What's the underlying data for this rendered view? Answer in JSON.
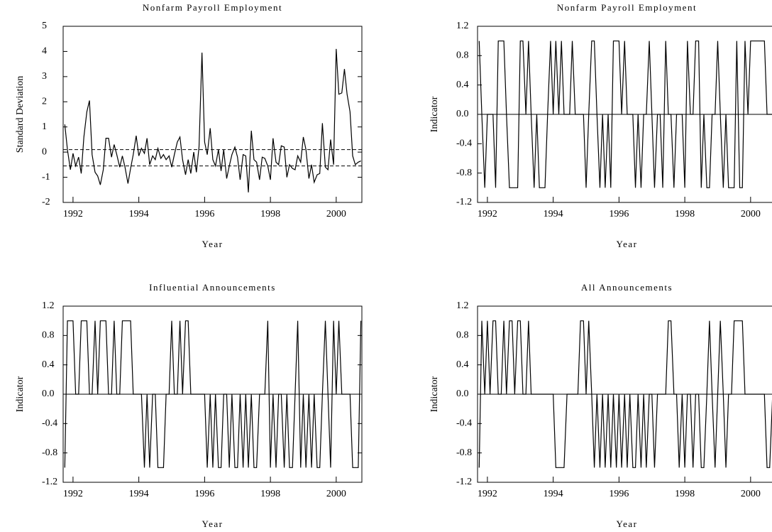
{
  "chart_data": [
    {
      "type": "line",
      "title": "Nonfarm Payroll Employment",
      "xlabel": "Year",
      "ylabel": "Standard Deviation",
      "color": "#000000",
      "x": [
        1991.75,
        1991.83,
        1991.92,
        1992.0,
        1992.08,
        1992.17,
        1992.25,
        1992.33,
        1992.42,
        1992.5,
        1992.58,
        1992.67,
        1992.75,
        1992.83,
        1992.92,
        1993.0,
        1993.08,
        1993.17,
        1993.25,
        1993.33,
        1993.42,
        1993.5,
        1993.58,
        1993.67,
        1993.75,
        1993.83,
        1993.92,
        1994.0,
        1994.08,
        1994.17,
        1994.25,
        1994.33,
        1994.42,
        1994.5,
        1994.58,
        1994.67,
        1994.75,
        1994.83,
        1994.92,
        1995.0,
        1995.08,
        1995.17,
        1995.25,
        1995.33,
        1995.42,
        1995.5,
        1995.58,
        1995.67,
        1995.75,
        1995.83,
        1995.92,
        1996.0,
        1996.08,
        1996.17,
        1996.25,
        1996.33,
        1996.42,
        1996.5,
        1996.58,
        1996.67,
        1996.75,
        1996.83,
        1996.92,
        1997.0,
        1997.08,
        1997.17,
        1997.25,
        1997.33,
        1997.42,
        1997.5,
        1997.58,
        1997.67,
        1997.75,
        1997.83,
        1997.92,
        1998.0,
        1998.08,
        1998.17,
        1998.25,
        1998.33,
        1998.42,
        1998.5,
        1998.58,
        1998.67,
        1998.75,
        1998.83,
        1998.92,
        1999.0,
        1999.08,
        1999.17,
        1999.25,
        1999.33,
        1999.42,
        1999.5,
        1999.58,
        1999.67,
        1999.75,
        1999.83,
        1999.92,
        2000.0,
        2000.08,
        2000.17,
        2000.25,
        2000.33,
        2000.42,
        2000.5,
        2000.58,
        2000.67,
        2000.75
      ],
      "values": [
        1.1,
        0.1,
        -0.7,
        -0.05,
        -0.55,
        -0.2,
        -0.85,
        0.6,
        1.6,
        2.05,
        -0.1,
        -0.8,
        -0.95,
        -1.3,
        -0.7,
        0.55,
        0.55,
        -0.2,
        0.3,
        -0.1,
        -0.6,
        -0.15,
        -0.6,
        -1.25,
        -0.65,
        -0.1,
        0.65,
        -0.15,
        0.15,
        -0.05,
        0.55,
        -0.5,
        -0.15,
        -0.3,
        0.15,
        -0.25,
        -0.1,
        -0.3,
        -0.15,
        -0.6,
        -0.1,
        0.4,
        0.6,
        -0.3,
        -0.9,
        -0.3,
        -0.85,
        0,
        -0.8,
        0.2,
        3.95,
        0.4,
        -0.1,
        0.95,
        -0.3,
        -0.55,
        0.1,
        -0.75,
        0.1,
        -1.05,
        -0.55,
        -0.1,
        0.2,
        -0.2,
        -1.1,
        -0.1,
        -0.15,
        -1.6,
        0.85,
        -0.3,
        -0.4,
        -1.1,
        -0.2,
        -0.25,
        -0.55,
        -1.1,
        0.55,
        -0.4,
        -0.5,
        0.25,
        0.2,
        -1.0,
        -0.5,
        -0.65,
        -0.7,
        -0.15,
        -0.4,
        0.6,
        0.1,
        -1.05,
        -0.5,
        -1.2,
        -0.9,
        -0.85,
        1.15,
        -0.6,
        -0.7,
        0.5,
        -0.5,
        4.1,
        2.3,
        2.35,
        3.3,
        2.3,
        1.6,
        -0.15,
        -0.5,
        -0.4,
        -0.35
      ],
      "xlim": [
        1991.7,
        2000.78
      ],
      "xticks": [
        1992,
        1994,
        1996,
        1998,
        2000
      ],
      "ylim": [
        -2,
        5
      ],
      "yticks": [
        -2,
        -1,
        0,
        1,
        2,
        3,
        4,
        5
      ],
      "hlines": [
        0.1,
        -0.55
      ],
      "hline_style": "dashed"
    },
    {
      "type": "line",
      "title": "Nonfarm Payroll Employment",
      "xlabel": "Year",
      "ylabel": "Indicator",
      "color": "#000000",
      "x": [
        1991.75,
        1991.83,
        1991.92,
        1992.0,
        1992.08,
        1992.17,
        1992.25,
        1992.33,
        1992.42,
        1992.5,
        1992.58,
        1992.67,
        1992.75,
        1992.83,
        1992.92,
        1993.0,
        1993.08,
        1993.17,
        1993.25,
        1993.33,
        1993.42,
        1993.5,
        1993.58,
        1993.67,
        1993.75,
        1993.83,
        1993.92,
        1994.0,
        1994.08,
        1994.17,
        1994.25,
        1994.33,
        1994.42,
        1994.5,
        1994.58,
        1994.67,
        1994.75,
        1994.83,
        1994.92,
        1995.0,
        1995.08,
        1995.17,
        1995.25,
        1995.33,
        1995.42,
        1995.5,
        1995.58,
        1995.67,
        1995.75,
        1995.83,
        1995.92,
        1996.0,
        1996.08,
        1996.17,
        1996.25,
        1996.33,
        1996.42,
        1996.5,
        1996.58,
        1996.67,
        1996.75,
        1996.83,
        1996.92,
        1997.0,
        1997.08,
        1997.17,
        1997.25,
        1997.33,
        1997.42,
        1997.5,
        1997.58,
        1997.67,
        1997.75,
        1997.83,
        1997.92,
        1998.0,
        1998.08,
        1998.17,
        1998.25,
        1998.33,
        1998.42,
        1998.5,
        1998.58,
        1998.67,
        1998.75,
        1998.83,
        1998.92,
        1999.0,
        1999.08,
        1999.17,
        1999.25,
        1999.33,
        1999.42,
        1999.5,
        1999.58,
        1999.67,
        1999.75,
        1999.83,
        1999.92,
        2000.0,
        2000.08,
        2000.17,
        2000.25,
        2000.33,
        2000.42,
        2000.5,
        2000.58,
        2000.67,
        2000.75
      ],
      "values": [
        1,
        0,
        -1,
        0,
        0,
        0,
        -1,
        1,
        1,
        1,
        0,
        -1,
        -1,
        -1,
        -1,
        1,
        1,
        0,
        1,
        0,
        -1,
        0,
        -1,
        -1,
        -1,
        0,
        1,
        0,
        1,
        0,
        1,
        0,
        0,
        0,
        1,
        0,
        0,
        0,
        0,
        -1,
        0,
        1,
        1,
        0,
        -1,
        0,
        -1,
        0,
        -1,
        1,
        1,
        1,
        0,
        1,
        0,
        0,
        0,
        -1,
        0,
        -1,
        0,
        0,
        1,
        0,
        -1,
        0,
        0,
        -1,
        1,
        0,
        0,
        -1,
        0,
        0,
        0,
        -1,
        1,
        0,
        0,
        1,
        1,
        -1,
        0,
        -1,
        -1,
        0,
        0,
        1,
        0,
        -1,
        0,
        -1,
        -1,
        -1,
        1,
        -1,
        -1,
        1,
        0,
        1,
        1,
        1,
        1,
        1,
        1,
        0,
        0,
        0,
        0
      ],
      "xlim": [
        1991.7,
        2000.78
      ],
      "xticks": [
        1992,
        1994,
        1996,
        1998,
        2000
      ],
      "ylim": [
        -1.2,
        1.2
      ],
      "yticks": [
        -1.2,
        -0.8,
        -0.4,
        {
          "value": 0,
          "label": "0.0"
        },
        0.4,
        0.8,
        1.2
      ],
      "hlines": [
        0
      ],
      "hline_style": "solid"
    },
    {
      "type": "line",
      "title": "Influential Announcements",
      "xlabel": "Year",
      "ylabel": "Indicator",
      "color": "#000000",
      "x": [
        1991.75,
        1991.83,
        1991.92,
        1992.0,
        1992.08,
        1992.17,
        1992.25,
        1992.33,
        1992.42,
        1992.5,
        1992.58,
        1992.67,
        1992.75,
        1992.83,
        1992.92,
        1993.0,
        1993.08,
        1993.17,
        1993.25,
        1993.33,
        1993.42,
        1993.5,
        1993.58,
        1993.67,
        1993.75,
        1993.83,
        1993.92,
        1994.0,
        1994.08,
        1994.17,
        1994.25,
        1994.33,
        1994.42,
        1994.5,
        1994.58,
        1994.67,
        1994.75,
        1994.83,
        1994.92,
        1995.0,
        1995.08,
        1995.17,
        1995.25,
        1995.33,
        1995.42,
        1995.5,
        1995.58,
        1995.67,
        1995.75,
        1995.83,
        1995.92,
        1996.0,
        1996.08,
        1996.17,
        1996.25,
        1996.33,
        1996.42,
        1996.5,
        1996.58,
        1996.67,
        1996.75,
        1996.83,
        1996.92,
        1997.0,
        1997.08,
        1997.17,
        1997.25,
        1997.33,
        1997.42,
        1997.5,
        1997.58,
        1997.67,
        1997.75,
        1997.83,
        1997.92,
        1998.0,
        1998.08,
        1998.17,
        1998.25,
        1998.33,
        1998.42,
        1998.5,
        1998.58,
        1998.67,
        1998.75,
        1998.83,
        1998.92,
        1999.0,
        1999.08,
        1999.17,
        1999.25,
        1999.33,
        1999.42,
        1999.5,
        1999.58,
        1999.67,
        1999.75,
        1999.83,
        1999.92,
        2000.0,
        2000.08,
        2000.17,
        2000.25,
        2000.33,
        2000.42,
        2000.5,
        2000.58,
        2000.67,
        2000.75
      ],
      "values": [
        -1,
        1,
        1,
        1,
        0,
        0,
        1,
        1,
        1,
        0,
        0,
        1,
        0,
        1,
        1,
        1,
        0,
        0,
        1,
        0,
        0,
        1,
        1,
        1,
        1,
        0,
        0,
        0,
        0,
        -1,
        0,
        -1,
        0,
        0,
        -1,
        -1,
        -1,
        0,
        0,
        1,
        0,
        0,
        1,
        0,
        1,
        1,
        0,
        0,
        0,
        0,
        0,
        0,
        -1,
        0,
        -1,
        0,
        -1,
        -1,
        0,
        0,
        -1,
        0,
        -1,
        -1,
        0,
        -1,
        0,
        -1,
        0,
        -1,
        -1,
        0,
        0,
        0,
        1,
        -1,
        0,
        -1,
        0,
        0,
        -1,
        0,
        -1,
        -1,
        0,
        1,
        -1,
        0,
        -1,
        0,
        -1,
        0,
        -1,
        -1,
        0,
        1,
        0,
        -1,
        1,
        0,
        1,
        0,
        0,
        0,
        0,
        -1,
        -1,
        -1,
        1
      ],
      "xlim": [
        1991.7,
        2000.78
      ],
      "xticks": [
        1992,
        1994,
        1996,
        1998,
        2000
      ],
      "ylim": [
        -1.2,
        1.2
      ],
      "yticks": [
        -1.2,
        -0.8,
        -0.4,
        {
          "value": 0,
          "label": "0.0"
        },
        0.4,
        0.8,
        1.2
      ],
      "hlines": [
        0
      ],
      "hline_style": "solid"
    },
    {
      "type": "line",
      "title": "All Announcements",
      "xlabel": "Year",
      "ylabel": "Indicator",
      "color": "#000000",
      "x": [
        1991.75,
        1991.83,
        1991.92,
        1992.0,
        1992.08,
        1992.17,
        1992.25,
        1992.33,
        1992.42,
        1992.5,
        1992.58,
        1992.67,
        1992.75,
        1992.83,
        1992.92,
        1993.0,
        1993.08,
        1993.17,
        1993.25,
        1993.33,
        1993.42,
        1993.5,
        1993.58,
        1993.67,
        1993.75,
        1993.83,
        1993.92,
        1994.0,
        1994.08,
        1994.17,
        1994.25,
        1994.33,
        1994.42,
        1994.5,
        1994.58,
        1994.67,
        1994.75,
        1994.83,
        1994.92,
        1995.0,
        1995.08,
        1995.17,
        1995.25,
        1995.33,
        1995.42,
        1995.5,
        1995.58,
        1995.67,
        1995.75,
        1995.83,
        1995.92,
        1996.0,
        1996.08,
        1996.17,
        1996.25,
        1996.33,
        1996.42,
        1996.5,
        1996.58,
        1996.67,
        1996.75,
        1996.83,
        1996.92,
        1997.0,
        1997.08,
        1997.17,
        1997.25,
        1997.33,
        1997.42,
        1997.5,
        1997.58,
        1997.67,
        1997.75,
        1997.83,
        1997.92,
        1998.0,
        1998.08,
        1998.17,
        1998.25,
        1998.33,
        1998.42,
        1998.5,
        1998.58,
        1998.67,
        1998.75,
        1998.83,
        1998.92,
        1999.0,
        1999.08,
        1999.17,
        1999.25,
        1999.33,
        1999.42,
        1999.5,
        1999.58,
        1999.67,
        1999.75,
        1999.83,
        1999.92,
        2000.0,
        2000.08,
        2000.17,
        2000.25,
        2000.33,
        2000.42,
        2000.5,
        2000.58,
        2000.67,
        2000.75
      ],
      "values": [
        -1,
        1,
        0,
        1,
        0,
        1,
        1,
        0,
        0,
        1,
        0,
        1,
        1,
        0,
        1,
        1,
        0,
        0,
        1,
        0,
        0,
        0,
        0,
        0,
        0,
        0,
        0,
        0,
        -1,
        -1,
        -1,
        -1,
        0,
        0,
        0,
        0,
        0,
        1,
        1,
        0,
        1,
        0,
        -1,
        0,
        -1,
        0,
        -1,
        0,
        -1,
        0,
        -1,
        0,
        -1,
        0,
        -1,
        0,
        -1,
        -1,
        0,
        -1,
        0,
        -1,
        0,
        0,
        -1,
        0,
        0,
        0,
        0,
        1,
        1,
        0,
        0,
        -1,
        0,
        -1,
        0,
        0,
        -1,
        0,
        0,
        -1,
        -1,
        0,
        1,
        0,
        -1,
        0,
        1,
        0,
        -1,
        0,
        0,
        1,
        1,
        1,
        1,
        0,
        0,
        0,
        0,
        0,
        0,
        0,
        0,
        -1,
        -1,
        0,
        0
      ],
      "xlim": [
        1991.7,
        2000.78
      ],
      "xticks": [
        1992,
        1994,
        1996,
        1998,
        2000
      ],
      "ylim": [
        -1.2,
        1.2
      ],
      "yticks": [
        -1.2,
        -0.8,
        -0.4,
        {
          "value": 0,
          "label": "0.0"
        },
        0.4,
        0.8,
        1.2
      ],
      "hlines": [
        0
      ],
      "hline_style": "solid"
    }
  ]
}
